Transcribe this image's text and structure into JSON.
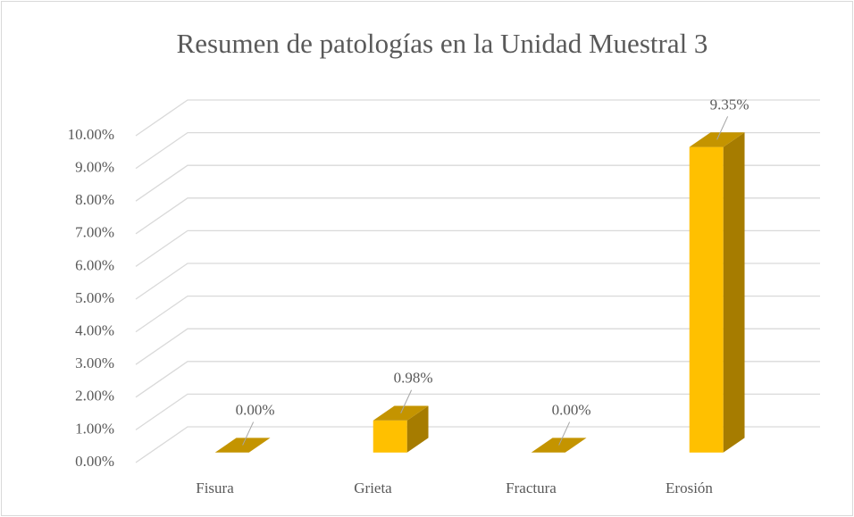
{
  "chart_data": {
    "type": "bar3d",
    "title": "Resumen de patologías en la Unidad Muestral 3",
    "categories": [
      "Fisura",
      "Grieta",
      "Fractura",
      "Erosión"
    ],
    "values": [
      0,
      0.98,
      0,
      9.35
    ],
    "value_labels": [
      "0.00%",
      "0.98%",
      "0.00%",
      "9.35%"
    ],
    "color": "#ffc000",
    "ylim": [
      0,
      10
    ],
    "yticks": [
      {
        "value": 0,
        "label": "0.00%"
      },
      {
        "value": 1,
        "label": "1.00%"
      },
      {
        "value": 2,
        "label": "2.00%"
      },
      {
        "value": 3,
        "label": "3.00%"
      },
      {
        "value": 4,
        "label": "4.00%"
      },
      {
        "value": 5,
        "label": "5.00%"
      },
      {
        "value": 6,
        "label": "6.00%"
      },
      {
        "value": 7,
        "label": "7.00%"
      },
      {
        "value": 8,
        "label": "8.00%"
      },
      {
        "value": 9,
        "label": "9.00%"
      },
      {
        "value": 10,
        "label": "10.00%"
      }
    ],
    "grid": true
  }
}
